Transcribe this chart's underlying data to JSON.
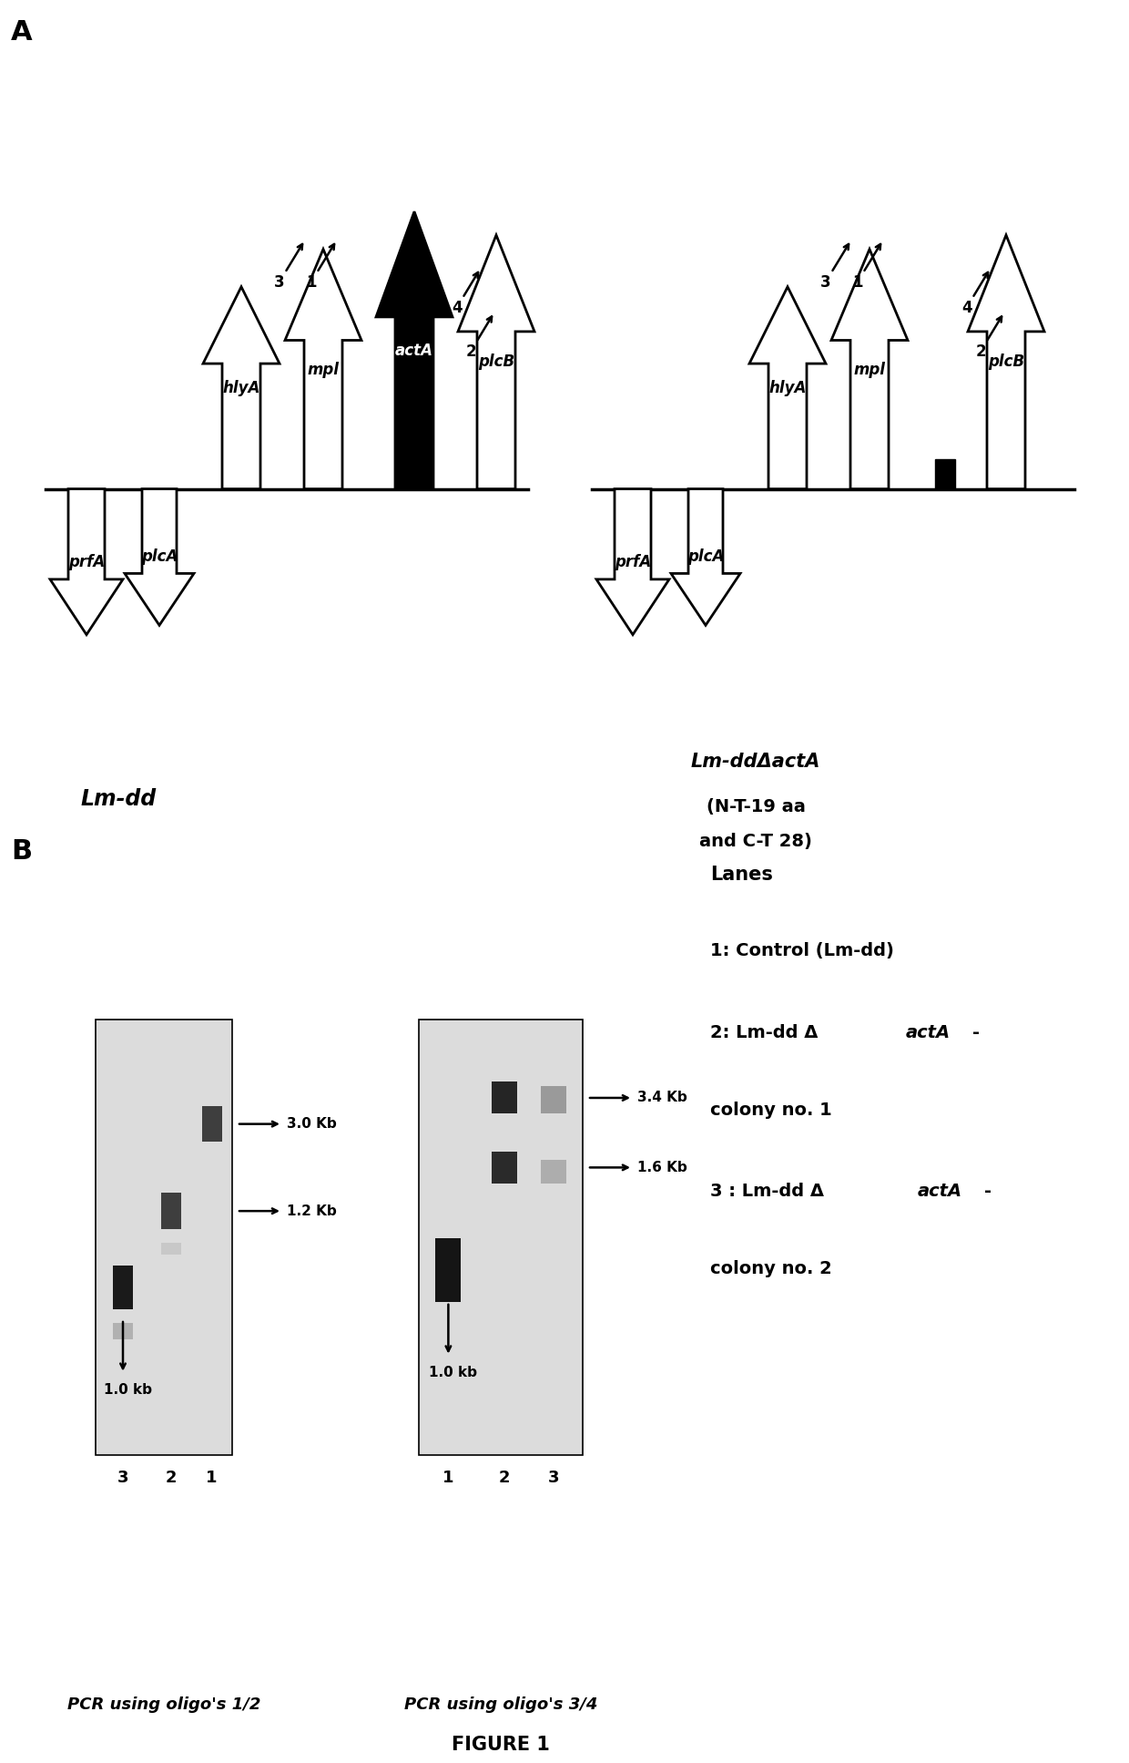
{
  "fig_width": 12.4,
  "fig_height": 19.35,
  "bg_color": "#ffffff",
  "panel_A_label": "A",
  "panel_B_label": "B",
  "lm_dd_label": "Lm-dd",
  "lm_dd_delta_line1": "Lm-ddΔactA",
  "lm_dd_delta_line2": "(N-T-19 aa",
  "lm_dd_delta_line3": "and C-T 28)",
  "oligo_label_12": "PCR using oligo's 1/2",
  "oligo_label_34": "PCR using oligo's 3/4",
  "figure1_label": "FIGURE 1",
  "lanes_text": "Lanes",
  "lane1_text": "1: Control (Lm-dd)",
  "lane2_part1": "2: Lm-dd Δ",
  "lane2_part2": "actA",
  "lane2_part3": "-",
  "lane2_line2": "colony no. 1",
  "lane3_part1": "3 : Lm-dd Δ",
  "lane3_part2": "actA",
  "lane3_part3": "-",
  "lane3_line2": "colony no. 2",
  "size_3_4kb": "3.4 Kb",
  "size_1_6kb": "1.6 Kb",
  "size_1_0kb_right": "1.0 kb",
  "size_3_0kb": "3.0 Kb",
  "size_1_2kb": "1.2 Kb",
  "size_1_0kb_left": "1.0 kb",
  "gene_labels_lmdd": [
    "prfA",
    "plcA",
    "hlyA",
    "mpl",
    "actA",
    "plcB"
  ],
  "gene_labels_delta": [
    "prfA",
    "plcA",
    "hlyA",
    "mpl",
    "plcB"
  ]
}
